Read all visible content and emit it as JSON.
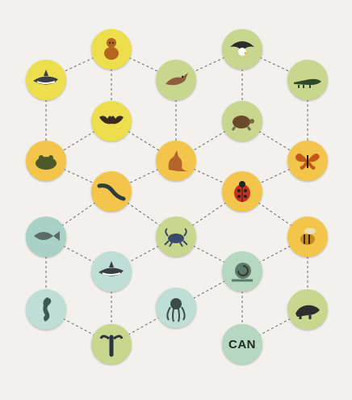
{
  "colors": {
    "yellow": "#ecde4c",
    "pale_yellow": "#f1e582",
    "orange": "#f3c64b",
    "sage": "#c8d68e",
    "teal": "#a9d2c6",
    "light_teal": "#bfded6",
    "sea_green": "#b7d8c0",
    "line": "#666666"
  },
  "nodes": [
    {
      "id": "monkey",
      "icon": "monkey-icon",
      "color": "yellow"
    },
    {
      "id": "eagle",
      "icon": "eagle-icon",
      "color": "sage"
    },
    {
      "id": "shark-top",
      "icon": "shark-icon",
      "color": "yellow"
    },
    {
      "id": "bird",
      "icon": "bird-icon",
      "color": "sage"
    },
    {
      "id": "crocodile",
      "icon": "crocodile-icon",
      "color": "sage"
    },
    {
      "id": "bat",
      "icon": "bat-icon",
      "color": "yellow"
    },
    {
      "id": "turtle",
      "icon": "turtle-icon",
      "color": "sage"
    },
    {
      "id": "frog",
      "icon": "frog-icon",
      "color": "orange"
    },
    {
      "id": "kangaroo",
      "icon": "kangaroo-icon",
      "color": "orange"
    },
    {
      "id": "butterfly",
      "icon": "butterfly-icon",
      "color": "orange"
    },
    {
      "id": "salamander",
      "icon": "salamander-icon",
      "color": "orange"
    },
    {
      "id": "ladybug",
      "icon": "ladybug-icon",
      "color": "orange"
    },
    {
      "id": "fish",
      "icon": "fish-icon",
      "color": "teal"
    },
    {
      "id": "crab",
      "icon": "crab-icon",
      "color": "sage"
    },
    {
      "id": "bee",
      "icon": "bee-icon",
      "color": "orange"
    },
    {
      "id": "shark",
      "icon": "shark-icon",
      "color": "light_teal"
    },
    {
      "id": "snail",
      "icon": "snail-icon",
      "color": "sea_green"
    },
    {
      "id": "seahorse",
      "icon": "seahorse-icon",
      "color": "light_teal"
    },
    {
      "id": "octopus",
      "icon": "octopus-icon",
      "color": "light_teal"
    },
    {
      "id": "anteater",
      "icon": "anteater-icon",
      "color": "sage"
    },
    {
      "id": "lobster",
      "icon": "lobster-icon",
      "color": "sage"
    },
    {
      "id": "can",
      "icon": "",
      "color": "sea_green",
      "label": "CAN"
    }
  ],
  "edges": [
    [
      "monkey",
      "shark-top"
    ],
    [
      "monkey",
      "bird"
    ],
    [
      "monkey",
      "bat"
    ],
    [
      "eagle",
      "bird"
    ],
    [
      "eagle",
      "crocodile"
    ],
    [
      "eagle",
      "turtle"
    ],
    [
      "shark-top",
      "frog"
    ],
    [
      "bird",
      "kangaroo"
    ],
    [
      "crocodile",
      "butterfly"
    ],
    [
      "bat",
      "frog"
    ],
    [
      "bat",
      "kangaroo"
    ],
    [
      "turtle",
      "kangaroo"
    ],
    [
      "turtle",
      "butterfly"
    ],
    [
      "frog",
      "salamander"
    ],
    [
      "kangaroo",
      "salamander"
    ],
    [
      "kangaroo",
      "ladybug"
    ],
    [
      "butterfly",
      "ladybug"
    ],
    [
      "salamander",
      "fish"
    ],
    [
      "salamander",
      "crab"
    ],
    [
      "ladybug",
      "crab"
    ],
    [
      "ladybug",
      "bee"
    ],
    [
      "fish",
      "shark"
    ],
    [
      "fish",
      "seahorse"
    ],
    [
      "crab",
      "shark"
    ],
    [
      "crab",
      "snail"
    ],
    [
      "bee",
      "snail"
    ],
    [
      "bee",
      "anteater"
    ],
    [
      "shark",
      "lobster"
    ],
    [
      "snail",
      "octopus"
    ],
    [
      "snail",
      "can"
    ],
    [
      "seahorse",
      "lobster"
    ],
    [
      "lobster",
      "octopus"
    ],
    [
      "anteater",
      "can"
    ]
  ]
}
